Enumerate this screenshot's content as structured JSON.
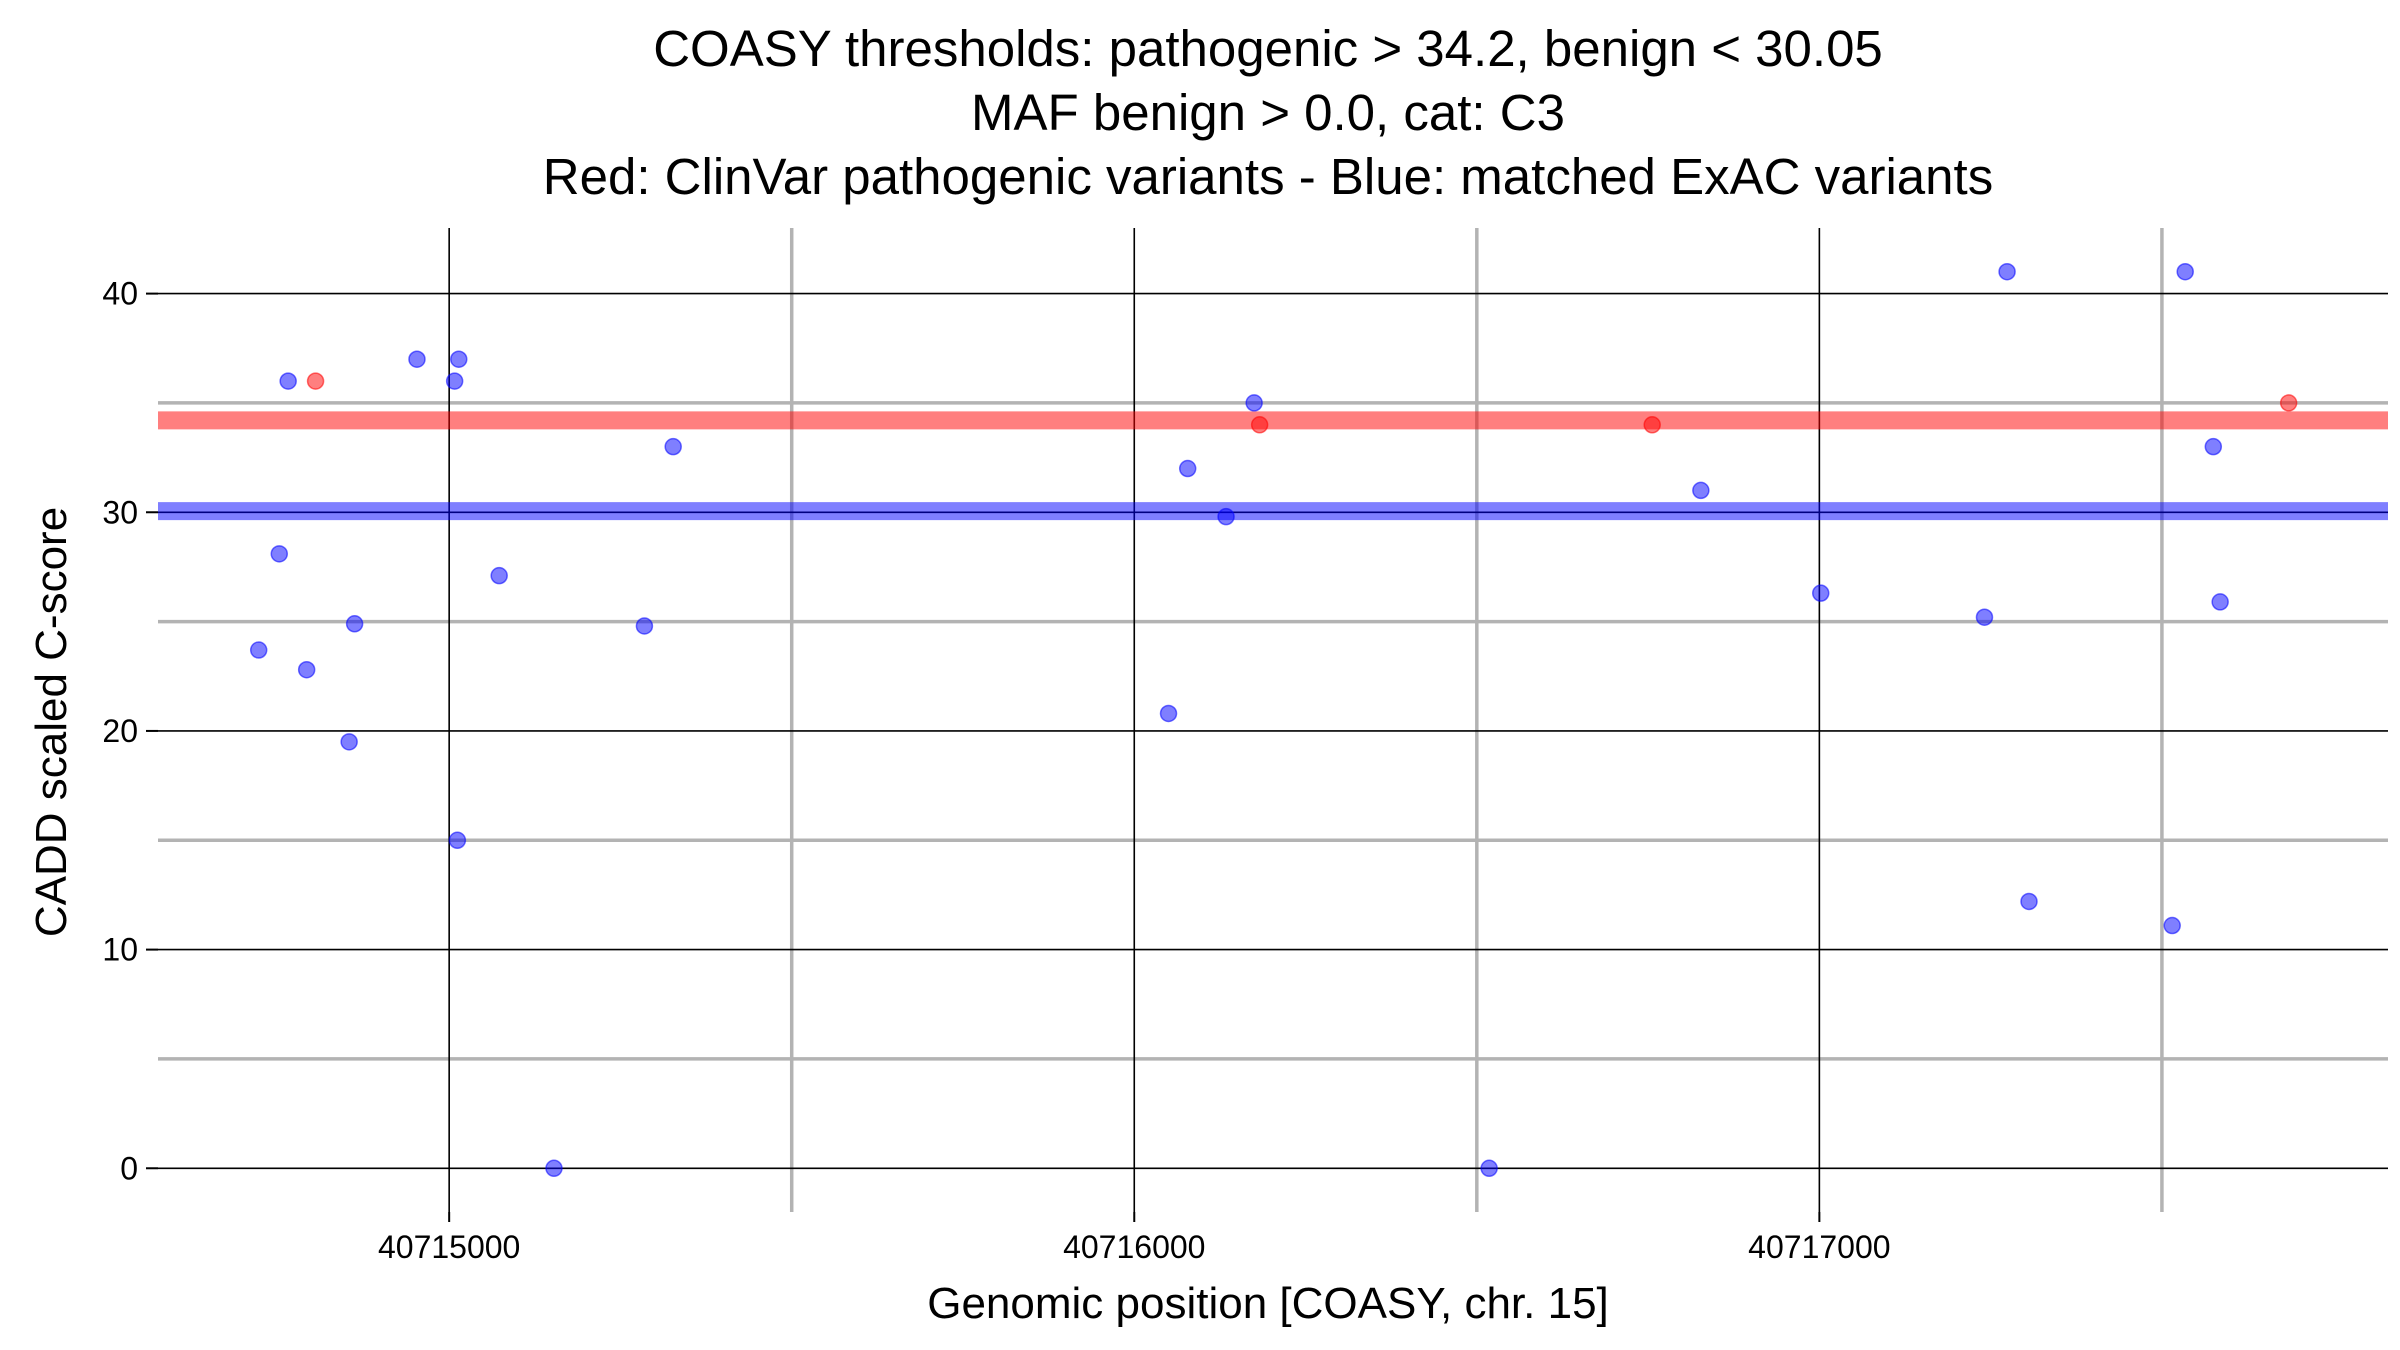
{
  "chart_data": {
    "type": "scatter",
    "title": [
      "COASY thresholds: pathogenic > 34.2, benign < 30.05",
      "MAF benign > 0.0, cat: C3",
      "Red: ClinVar pathogenic variants - Blue: matched ExAC variants"
    ],
    "xlabel": "Genomic position [COASY, chr. 15]",
    "ylabel": "CADD scaled C-score",
    "xlim": [
      40714575,
      40717830
    ],
    "ylim": [
      -2,
      43
    ],
    "x_ticks": [
      40715000,
      40716000,
      40717000
    ],
    "x_tick_labels": [
      "40715000",
      "40716000",
      "40717000"
    ],
    "x_minor_grid": [
      40715500,
      40716500,
      40717500
    ],
    "y_ticks": [
      0,
      10,
      20,
      30,
      40
    ],
    "y_tick_labels": [
      "0",
      "10",
      "20",
      "30",
      "40"
    ],
    "y_minor_grid": [
      5,
      15,
      25,
      35
    ],
    "grid": true,
    "thresholds": [
      {
        "name": "pathogenic",
        "value": 34.2,
        "color": "#ff0000"
      },
      {
        "name": "benign",
        "value": 30.05,
        "color": "#0000ff"
      }
    ],
    "series": [
      {
        "name": "ClinVar pathogenic variants",
        "color": "#ff0000",
        "points": [
          {
            "x": 40714805,
            "y": 36
          },
          {
            "x": 40716183,
            "y": 34
          },
          {
            "x": 40716756,
            "y": 34
          },
          {
            "x": 40717685,
            "y": 35
          }
        ]
      },
      {
        "name": "matched ExAC variants",
        "color": "#0000ff",
        "points": [
          {
            "x": 40714722,
            "y": 23.7
          },
          {
            "x": 40714752,
            "y": 28.1
          },
          {
            "x": 40714765,
            "y": 36
          },
          {
            "x": 40714792,
            "y": 22.8
          },
          {
            "x": 40714854,
            "y": 19.5
          },
          {
            "x": 40714862,
            "y": 24.9
          },
          {
            "x": 40714953,
            "y": 37
          },
          {
            "x": 40715008,
            "y": 36
          },
          {
            "x": 40715012,
            "y": 15
          },
          {
            "x": 40715014,
            "y": 37
          },
          {
            "x": 40715073,
            "y": 27.1
          },
          {
            "x": 40715153,
            "y": 0
          },
          {
            "x": 40715285,
            "y": 24.8
          },
          {
            "x": 40715327,
            "y": 33
          },
          {
            "x": 40716050,
            "y": 20.8
          },
          {
            "x": 40716078,
            "y": 32
          },
          {
            "x": 40716134,
            "y": 29.8
          },
          {
            "x": 40716175,
            "y": 35
          },
          {
            "x": 40716518,
            "y": 0
          },
          {
            "x": 40716827,
            "y": 31
          },
          {
            "x": 40717002,
            "y": 26.3
          },
          {
            "x": 40717241,
            "y": 25.2
          },
          {
            "x": 40717274,
            "y": 41
          },
          {
            "x": 40717306,
            "y": 12.2
          },
          {
            "x": 40717515,
            "y": 11.1
          },
          {
            "x": 40717534,
            "y": 41
          },
          {
            "x": 40717575,
            "y": 33
          },
          {
            "x": 40717585,
            "y": 25.9
          }
        ]
      }
    ]
  }
}
